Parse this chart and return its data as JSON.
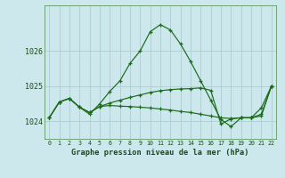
{
  "title": "Graphe pression niveau de la mer (hPa)",
  "bg_color": "#cce8ec",
  "grid_color": "#aacdd4",
  "line_color": "#1a6b1a",
  "x_ticks": [
    0,
    1,
    2,
    3,
    4,
    5,
    6,
    7,
    8,
    9,
    10,
    11,
    12,
    13,
    14,
    15,
    16,
    17,
    18,
    19,
    20,
    21,
    22
  ],
  "ylim": [
    1023.5,
    1027.3
  ],
  "yticks": [
    1024,
    1025,
    1026
  ],
  "series": [
    [
      1024.1,
      1024.55,
      1024.65,
      1024.4,
      1024.2,
      1024.5,
      1024.85,
      1025.15,
      1025.65,
      1026.0,
      1026.55,
      1026.75,
      1026.6,
      1026.2,
      1025.7,
      1025.15,
      1024.6,
      1024.05,
      1023.85,
      1024.1,
      1024.1,
      1024.2,
      1025.0
    ],
    [
      1024.1,
      1024.55,
      1024.65,
      1024.4,
      1024.25,
      1024.42,
      1024.45,
      1024.43,
      1024.42,
      1024.4,
      1024.38,
      1024.35,
      1024.32,
      1024.28,
      1024.25,
      1024.2,
      1024.15,
      1024.1,
      1024.08,
      1024.1,
      1024.1,
      1024.15,
      1025.0
    ],
    [
      1024.1,
      1024.55,
      1024.65,
      1024.4,
      1024.25,
      1024.42,
      1024.52,
      1024.6,
      1024.68,
      1024.75,
      1024.82,
      1024.87,
      1024.9,
      1024.92,
      1024.93,
      1024.95,
      1024.88,
      1023.92,
      1024.07,
      1024.1,
      1024.1,
      1024.38,
      1025.0
    ]
  ]
}
